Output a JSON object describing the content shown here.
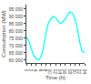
{
  "chart_data": {
    "type": "line",
    "xlabel": "Time (h)",
    "ylabel": "Consumption (MW)",
    "color": "cyan",
    "grid": false,
    "x": [
      0,
      1,
      2,
      3,
      4,
      5,
      6,
      7,
      8,
      9,
      10,
      11,
      12,
      13,
      14,
      15,
      16,
      17,
      18,
      19,
      20,
      21,
      22,
      23,
      24
    ],
    "values": [
      76000,
      73000,
      68000,
      63000,
      61000,
      60000,
      62000,
      68000,
      78000,
      85000,
      88000,
      90000,
      89000,
      87000,
      85000,
      86000,
      88000,
      91000,
      93000,
      92000,
      88000,
      82000,
      72000,
      66000,
      65000
    ],
    "xlim": [
      0,
      24
    ],
    "ylim": [
      58000,
      98000
    ],
    "xticks": [
      0,
      2,
      4,
      6,
      8,
      10,
      12,
      14,
      16,
      18,
      20,
      22,
      24
    ],
    "yticks": [
      {
        "value": 60000,
        "label": "60 000"
      },
      {
        "value": 65000,
        "label": "65 000"
      },
      {
        "value": 70000,
        "label": "70 000"
      },
      {
        "value": 75000,
        "label": "75 000"
      },
      {
        "value": 80000,
        "label": "80 000"
      },
      {
        "value": 85000,
        "label": "85 000"
      },
      {
        "value": 90000,
        "label": "90 000"
      },
      {
        "value": 95000,
        "label": "95 000"
      }
    ]
  }
}
